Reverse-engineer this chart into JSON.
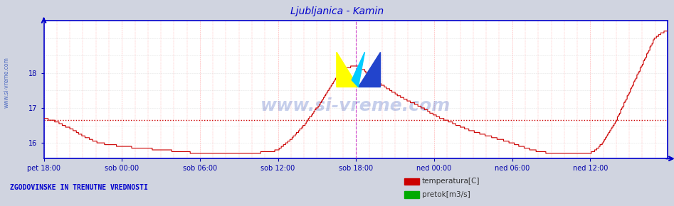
{
  "title": "Ljubljanica - Kamin",
  "title_color": "#0000cc",
  "bg_color": "#d0d4e0",
  "plot_bg_color": "#ffffff",
  "line_color": "#cc0000",
  "avg_line_color": "#cc0000",
  "avg_line_value": 16.65,
  "vline_color": "#cc44cc",
  "vline_pos": 288,
  "xlabel_color": "#0000aa",
  "ylabel_color": "#0000aa",
  "axis_color": "#0000cc",
  "grid_color_v": "#ffaaaa",
  "grid_color_h": "#cccccc",
  "watermark": "www.si-vreme.com",
  "watermark_color": "#3355bb",
  "sidebar_text": "www.si-vreme.com",
  "footer_text": "ZGODOVINSKE IN TRENUTNE VREDNOSTI",
  "footer_color": "#0000cc",
  "legend_items": [
    "temperatura[C]",
    "pretok[m3/s]"
  ],
  "legend_colors": [
    "#cc0000",
    "#00aa00"
  ],
  "ylim": [
    15.55,
    19.5
  ],
  "yticks": [
    16,
    17,
    18
  ],
  "n_points": 576,
  "x_tick_positions": [
    0,
    72,
    144,
    216,
    288,
    360,
    432,
    504
  ],
  "x_tick_labels": [
    "pet 18:00",
    "sob 00:00",
    "sob 06:00",
    "sob 12:00",
    "sob 18:00",
    "ned 00:00",
    "ned 06:00",
    "ned 12:00"
  ]
}
